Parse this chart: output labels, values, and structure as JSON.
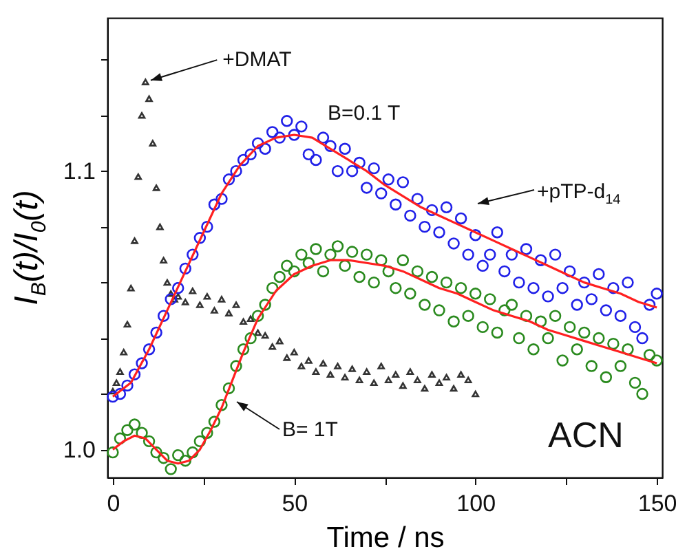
{
  "chart_data": {
    "type": "scatter",
    "xlabel": "Time / ns",
    "ylabel": "I$_{B}$(t)/I$_{0}$(t)",
    "xlim": [
      -1.5,
      151.5
    ],
    "ylim": [
      0.99,
      1.155
    ],
    "xticks": [
      0,
      {
        "value": 25,
        "label": null
      },
      50,
      {
        "value": 75,
        "label": null
      },
      100,
      {
        "value": 125,
        "label": null
      },
      150
    ],
    "yticks": [
      {
        "value": 1.0,
        "label": "1.0"
      },
      {
        "value": 1.02,
        "label": null
      },
      {
        "value": 1.04,
        "label": null
      },
      {
        "value": 1.06,
        "label": null
      },
      {
        "value": 1.08,
        "label": null
      },
      {
        "value": 1.1,
        "label": "1.1"
      },
      {
        "value": 1.12,
        "label": null
      },
      {
        "value": 1.14,
        "label": null
      }
    ],
    "grid": false,
    "annotations": [
      {
        "text": "+DMAT",
        "x": 9,
        "y": 1.132
      },
      "B=0.1 T",
      "+pTP-d$_{14}$",
      "B= 1T",
      "ACN"
    ],
    "series": [
      {
        "marker": "triangle",
        "color": "#333333",
        "x": [
          0,
          1,
          2,
          3,
          4,
          5,
          6,
          7,
          8,
          9,
          10,
          11,
          12,
          13,
          14,
          15,
          16,
          17,
          18,
          20,
          22,
          24,
          26,
          28,
          30,
          32,
          34,
          36,
          38,
          40,
          42,
          44,
          46,
          48,
          50,
          52,
          54,
          56,
          58,
          60,
          62,
          64,
          66,
          68,
          70,
          72,
          74,
          76,
          78,
          80,
          82,
          84,
          86,
          88,
          90,
          92,
          94,
          96,
          98,
          100
        ],
        "values": [
          1.021,
          1.024,
          1.028,
          1.035,
          1.045,
          1.058,
          1.075,
          1.098,
          1.12,
          1.132,
          1.126,
          1.11,
          1.094,
          1.08,
          1.068,
          1.06,
          1.056,
          1.054,
          1.055,
          1.053,
          1.057,
          1.052,
          1.055,
          1.05,
          1.054,
          1.049,
          1.052,
          1.046,
          1.047,
          1.042,
          1.041,
          1.037,
          1.039,
          1.033,
          1.035,
          1.03,
          1.032,
          1.028,
          1.031,
          1.027,
          1.03,
          1.026,
          1.029,
          1.025,
          1.028,
          1.024,
          1.03,
          1.025,
          1.027,
          1.023,
          1.028,
          1.025,
          1.022,
          1.027,
          1.024,
          1.026,
          1.022,
          1.027,
          1.025,
          1.02
        ]
      },
      {
        "marker": "circle",
        "color": "#2020e8",
        "x": [
          0,
          2,
          4,
          6,
          8,
          10,
          12,
          14,
          16,
          18,
          20,
          22,
          24,
          26,
          28,
          30,
          32,
          34,
          36,
          38,
          40,
          42,
          44,
          46,
          48,
          50,
          52,
          54,
          56,
          58,
          60,
          62,
          64,
          66,
          68,
          70,
          72,
          74,
          76,
          78,
          80,
          82,
          84,
          86,
          88,
          90,
          92,
          94,
          96,
          98,
          100,
          102,
          104,
          106,
          108,
          110,
          112,
          114,
          116,
          118,
          120,
          122,
          124,
          126,
          128,
          130,
          132,
          134,
          136,
          138,
          140,
          142,
          144,
          146,
          148,
          150
        ],
        "values": [
          1.019,
          1.02,
          1.023,
          1.027,
          1.031,
          1.036,
          1.042,
          1.048,
          1.054,
          1.058,
          1.065,
          1.07,
          1.076,
          1.08,
          1.088,
          1.09,
          1.097,
          1.1,
          1.104,
          1.106,
          1.11,
          1.108,
          1.114,
          1.112,
          1.118,
          1.113,
          1.116,
          1.106,
          1.104,
          1.112,
          1.109,
          1.1,
          1.108,
          1.1,
          1.103,
          1.094,
          1.101,
          1.092,
          1.097,
          1.088,
          1.096,
          1.084,
          1.09,
          1.08,
          1.086,
          1.078,
          1.087,
          1.074,
          1.083,
          1.07,
          1.077,
          1.066,
          1.07,
          1.078,
          1.064,
          1.07,
          1.06,
          1.072,
          1.058,
          1.068,
          1.055,
          1.07,
          1.058,
          1.064,
          1.052,
          1.06,
          1.054,
          1.063,
          1.05,
          1.058,
          1.048,
          1.06,
          1.044,
          1.04,
          1.052,
          1.056
        ]
      },
      {
        "marker": "circle",
        "color": "#2a8a1e",
        "x": [
          0,
          2,
          4,
          6,
          8,
          10,
          12,
          14,
          16,
          18,
          20,
          22,
          24,
          26,
          28,
          30,
          32,
          34,
          36,
          38,
          40,
          42,
          44,
          46,
          48,
          50,
          52,
          54,
          56,
          58,
          60,
          62,
          64,
          66,
          68,
          70,
          72,
          74,
          76,
          78,
          80,
          82,
          84,
          86,
          88,
          90,
          92,
          94,
          96,
          98,
          100,
          102,
          104,
          106,
          108,
          110,
          112,
          114,
          116,
          118,
          120,
          122,
          124,
          126,
          128,
          130,
          132,
          134,
          136,
          138,
          140,
          142,
          144,
          146,
          148,
          150
        ],
        "values": [
          0.999,
          1.004,
          1.007,
          1.009,
          1.006,
          1.003,
          0.999,
          0.997,
          0.993,
          0.998,
          0.996,
          0.999,
          1.003,
          1.006,
          1.01,
          1.016,
          1.022,
          1.03,
          1.036,
          1.04,
          1.048,
          1.052,
          1.058,
          1.062,
          1.066,
          1.064,
          1.07,
          1.067,
          1.072,
          1.064,
          1.07,
          1.073,
          1.066,
          1.071,
          1.062,
          1.07,
          1.06,
          1.068,
          1.064,
          1.058,
          1.068,
          1.056,
          1.064,
          1.052,
          1.062,
          1.05,
          1.06,
          1.046,
          1.058,
          1.048,
          1.056,
          1.044,
          1.054,
          1.042,
          1.05,
          1.052,
          1.04,
          1.048,
          1.036,
          1.046,
          1.04,
          1.048,
          1.032,
          1.044,
          1.036,
          1.042,
          1.03,
          1.04,
          1.026,
          1.038,
          1.03,
          1.036,
          1.024,
          1.02,
          1.034,
          1.032
        ]
      },
      {
        "type": "line",
        "marker": "none",
        "color": "#ff2020",
        "x": [
          0,
          5,
          10,
          15,
          20,
          25,
          30,
          35,
          40,
          45,
          50,
          55,
          60,
          65,
          70,
          75,
          80,
          85,
          90,
          95,
          100,
          105,
          110,
          115,
          120,
          125,
          130,
          135,
          140,
          145,
          150
        ],
        "values": [
          1.019,
          1.024,
          1.036,
          1.05,
          1.064,
          1.078,
          1.092,
          1.102,
          1.109,
          1.112,
          1.113,
          1.112,
          1.108,
          1.104,
          1.1,
          1.095,
          1.091,
          1.087,
          1.084,
          1.081,
          1.078,
          1.075,
          1.072,
          1.069,
          1.066,
          1.063,
          1.06,
          1.058,
          1.056,
          1.053,
          1.051
        ]
      },
      {
        "type": "line",
        "marker": "none",
        "color": "#ff2020",
        "x": [
          0,
          3,
          6,
          9,
          12,
          15,
          18,
          21,
          24,
          27,
          30,
          33,
          36,
          40,
          45,
          50,
          55,
          60,
          65,
          70,
          75,
          80,
          85,
          90,
          95,
          100,
          105,
          110,
          115,
          120,
          125,
          130,
          135,
          140,
          145,
          150
        ],
        "values": [
          1.0,
          1.003,
          1.005,
          1.004,
          1.0,
          0.996,
          0.995,
          0.996,
          1.0,
          1.007,
          1.015,
          1.025,
          1.035,
          1.047,
          1.057,
          1.063,
          1.066,
          1.068,
          1.068,
          1.067,
          1.066,
          1.064,
          1.061,
          1.058,
          1.056,
          1.053,
          1.05,
          1.048,
          1.046,
          1.043,
          1.041,
          1.039,
          1.037,
          1.035,
          1.033,
          1.031
        ]
      }
    ]
  }
}
